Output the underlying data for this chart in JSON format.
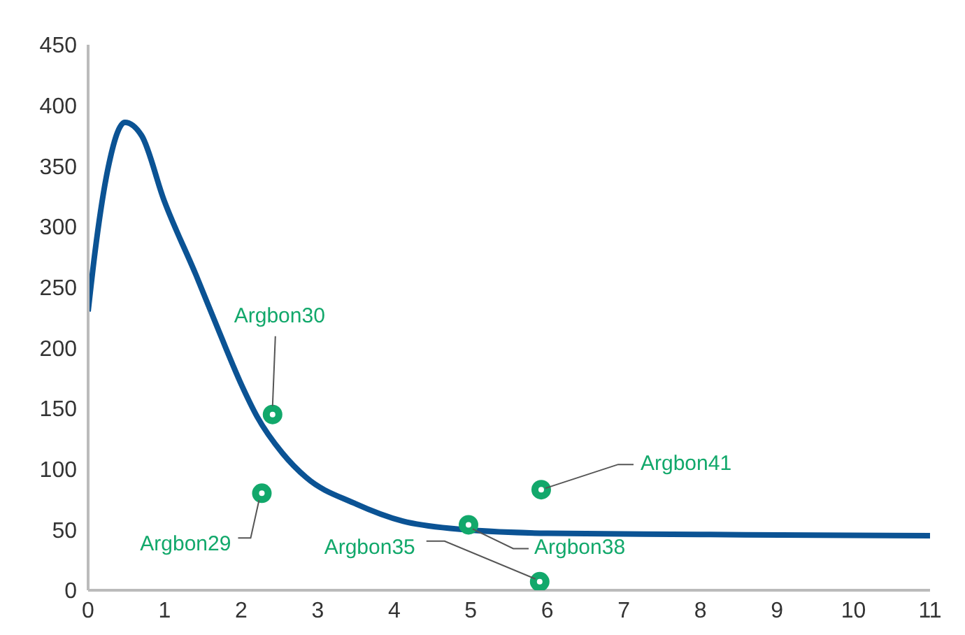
{
  "chart_data": {
    "type": "line",
    "xlim": [
      0,
      11
    ],
    "xticks": [
      0,
      1,
      2,
      3,
      4,
      5,
      6,
      7,
      8,
      9,
      10,
      11
    ],
    "ylim": [
      0,
      450
    ],
    "yticks": [
      0,
      50,
      100,
      150,
      200,
      250,
      300,
      350,
      400,
      450
    ],
    "grid": false,
    "series": [
      {
        "color": "#0b5394",
        "marker": "none",
        "x": [
          0,
          0.09,
          0.26,
          0.48,
          0.7,
          0.99,
          1.41,
          1.72,
          2.0,
          2.21,
          2.54,
          2.85,
          3.47,
          4.11,
          4.73,
          6,
          8,
          11
        ],
        "values": [
          230,
          279,
          348,
          386,
          375,
          322,
          260,
          212,
          170,
          143,
          113,
          93,
          72,
          57,
          51,
          47,
          46,
          45
        ]
      },
      {
        "type": "scatter",
        "color": "#12a86b",
        "marker": "circle",
        "x": [
          2.41,
          2.27,
          4.97,
          5.9,
          5.92
        ],
        "values": [
          145,
          80,
          54,
          7,
          83
        ]
      }
    ],
    "annotations": [
      {
        "text": "Argbon30",
        "x": 2.41,
        "y": 145
      },
      {
        "text": "Argbon29",
        "x": 2.27,
        "y": 80
      },
      {
        "text": "Argbon38",
        "x": 4.97,
        "y": 54
      },
      {
        "text": "Argbon35",
        "x": 5.9,
        "y": 7
      },
      {
        "text": "Argbon41",
        "x": 5.92,
        "y": 83
      }
    ]
  }
}
